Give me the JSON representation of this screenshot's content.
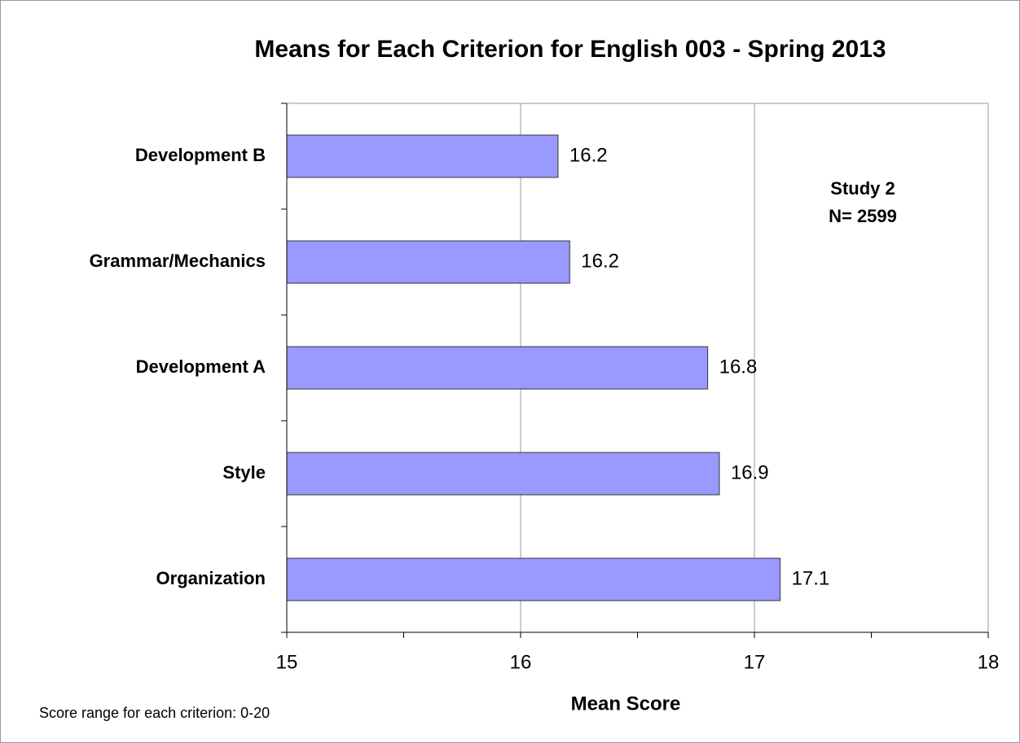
{
  "chart_data": {
    "type": "barh",
    "title": "Means for Each Criterion for English 003  - Spring 2013",
    "xlabel": "Mean Score",
    "annotations": [
      "Study 2",
      "N= 2599"
    ],
    "footnote": "Score range for each criterion: 0-20",
    "categories": [
      "Development B",
      "Grammar/Mechanics",
      "Development A",
      "Style",
      "Organization"
    ],
    "values": [
      16.16,
      16.21,
      16.8,
      16.85,
      17.11
    ],
    "value_labels": [
      "16.2",
      "16.2",
      "16.8",
      "16.9",
      "17.1"
    ],
    "color": "#9999ff",
    "xlim": [
      15,
      18
    ],
    "xticks": [
      15,
      16,
      17,
      18
    ],
    "xminorticks": [
      15.5,
      16.5,
      17.5
    ],
    "grid": true
  }
}
